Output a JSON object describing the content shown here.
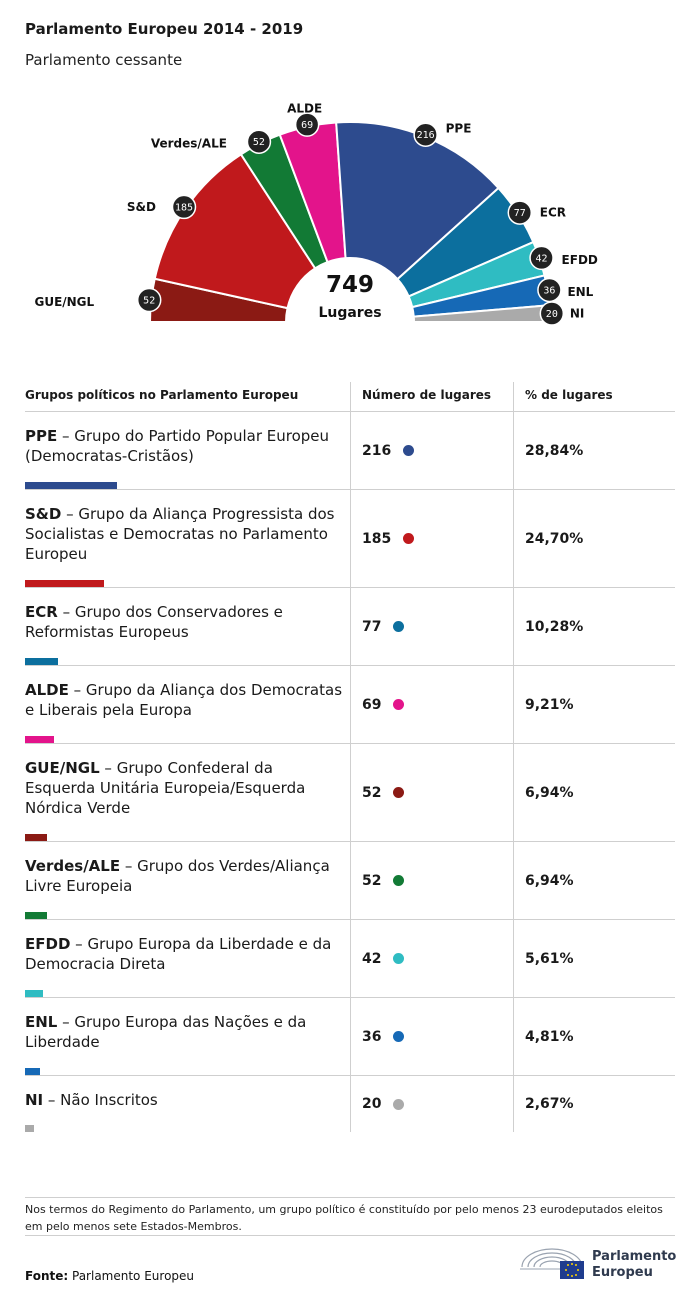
{
  "title": "Parlamento Europeu 2014 - 2019",
  "subtitle": "Parlamento cessante",
  "chart_data": {
    "type": "pie",
    "subtype": "hemicycle",
    "total": {
      "value": "749",
      "label": "Lugares"
    },
    "series": [
      {
        "label": "GUE/NGL",
        "seats": 52,
        "color": "#8b1a14"
      },
      {
        "label": "S&D",
        "seats": 185,
        "color": "#c0191c"
      },
      {
        "label": "Verdes/ALE",
        "seats": 52,
        "color": "#127a35"
      },
      {
        "label": "ALDE",
        "seats": 69,
        "color": "#e3148b"
      },
      {
        "label": "PPE",
        "seats": 216,
        "color": "#2d4b8e"
      },
      {
        "label": "ECR",
        "seats": 77,
        "color": "#0c6f9e"
      },
      {
        "label": "EFDD",
        "seats": 42,
        "color": "#2fbcc2"
      },
      {
        "label": "ENL",
        "seats": 36,
        "color": "#1669b6"
      },
      {
        "label": "NI",
        "seats": 20,
        "color": "#aaaaaa"
      }
    ]
  },
  "table": {
    "headers": [
      "Grupos políticos no Parlamento Europeu",
      "Número de lugares",
      "% de lugares"
    ],
    "rows": [
      {
        "abbr": "PPE",
        "name": " – Grupo do Partido Popular Europeu (Democratas-Cristãos)",
        "seats": "216",
        "pct": "28,84%",
        "color": "#2d4b8e",
        "share": 0.2884
      },
      {
        "abbr": "S&D",
        "name": " – Grupo da Aliança Progressista dos Socialistas e Democratas no Parlamento Europeu",
        "seats": "185",
        "pct": "24,70%",
        "color": "#c0191c",
        "share": 0.247
      },
      {
        "abbr": "ECR",
        "name": " – Grupo dos Conservadores e Reformistas Europeus",
        "seats": "77",
        "pct": "10,28%",
        "color": "#0c6f9e",
        "share": 0.1028
      },
      {
        "abbr": "ALDE",
        "name": " – Grupo da Aliança dos Democratas e Liberais pela Europa",
        "seats": "69",
        "pct": "9,21%",
        "color": "#e3148b",
        "share": 0.0921
      },
      {
        "abbr": "GUE/NGL",
        "name": " – Grupo Confederal da Esquerda Unitária Europeia/Esquerda Nórdica Verde",
        "seats": "52",
        "pct": "6,94%",
        "color": "#8b1a14",
        "share": 0.0694
      },
      {
        "abbr": "Verdes/ALE",
        "name": " – Grupo dos Verdes/Aliança Livre Europeia",
        "seats": "52",
        "pct": "6,94%",
        "color": "#127a35",
        "share": 0.0694
      },
      {
        "abbr": "EFDD",
        "name": " – Grupo Europa da Liberdade e da Democracia Direta",
        "seats": "42",
        "pct": "5,61%",
        "color": "#2fbcc2",
        "share": 0.0561
      },
      {
        "abbr": "ENL",
        "name": " – Grupo Europa das Nações e da Liberdade",
        "seats": "36",
        "pct": "4,81%",
        "color": "#1669b6",
        "share": 0.0481
      },
      {
        "abbr": "NI",
        "name": " – Não Inscritos",
        "seats": "20",
        "pct": "2,67%",
        "color": "#aaaaaa",
        "share": 0.0267
      }
    ]
  },
  "note": "Nos termos do Regimento do Parlamento, um grupo político é constituído por pelo menos 23 eurodeputados eleitos em pelo menos sete Estados-Membros.",
  "source": {
    "label": "Fonte:",
    "value": "Parlamento Europeu"
  },
  "logo": {
    "line1": "Parlamento",
    "line2": "Europeu"
  }
}
